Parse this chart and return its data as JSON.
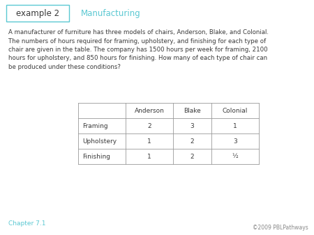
{
  "title_label": "example 2",
  "title_subject": "Manufacturing",
  "title_color": "#5bc8d2",
  "body_text": "A manufacturer of furniture has three models of chairs, Anderson, Blake, and Colonial.\nThe numbers of hours required for framing, upholstery, and finishing for each type of\nchair are given in the table. The company has 1500 hours per week for framing, 2100\nhours for upholstery, and 850 hours for finishing. How many of each type of chair can\nbe produced under these conditions?",
  "text_color": "#3a3a3a",
  "footer_text": "Chapter 7.1",
  "footer_color": "#5bc8d2",
  "copyright_text": "©2009 PBLPathways",
  "copyright_color": "#888888",
  "table_headers": [
    "",
    "Anderson",
    "Blake",
    "Colonial"
  ],
  "table_rows": [
    [
      "Framing",
      "2",
      "3",
      "1"
    ],
    [
      "Upholstery",
      "1",
      "2",
      "3"
    ],
    [
      "Finishing",
      "1",
      "2",
      "½"
    ]
  ],
  "bg_color": "#ffffff",
  "box_color": "#5bc8d2",
  "table_line_color": "#999999",
  "fig_width": 4.5,
  "fig_height": 3.38,
  "dpi": 100
}
